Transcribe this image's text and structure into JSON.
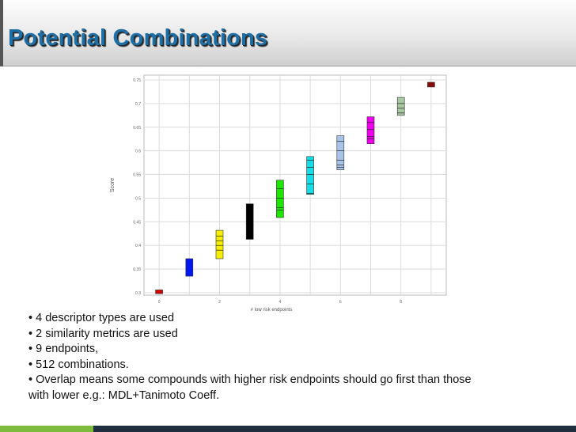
{
  "slide": {
    "title": "Potential Combinations",
    "bullets": [
      "• 4 descriptor types are used",
      "• 2 similarity metrics are used",
      "• 9 endpoints,",
      "• 512 combinations.",
      "• Overlap means some compounds with higher risk endpoints should go first than those",
      "with lower e.g.: MDL+Tanimoto Coeff."
    ]
  },
  "chart_data": {
    "type": "box",
    "xlabel": "# low risk endpoints",
    "ylabel": "Score",
    "xlim": [
      -0.5,
      9.5
    ],
    "ylim": [
      0.295,
      0.76
    ],
    "xticks": [
      0,
      2,
      4,
      6,
      8
    ],
    "yticks": [
      0.3,
      0.35,
      0.4,
      0.45,
      0.5,
      0.55,
      0.6,
      0.65,
      0.7,
      0.75
    ],
    "ytick_labels": [
      "0.3",
      "0.35",
      "0.4",
      "0.45",
      "0.5",
      "0.55",
      "0.6",
      "0.65",
      "0.7",
      "0.75"
    ],
    "grid": true,
    "boxes": [
      {
        "x": 0,
        "low": 0.298,
        "high": 0.306,
        "color": "#d40000",
        "lines": []
      },
      {
        "x": 1,
        "low": 0.335,
        "high": 0.372,
        "color": "#0018f0",
        "lines": []
      },
      {
        "x": 2,
        "low": 0.372,
        "high": 0.432,
        "color": "#f6ef00",
        "lines": [
          0.39,
          0.4,
          0.41,
          0.42
        ]
      },
      {
        "x": 3,
        "low": 0.413,
        "high": 0.488,
        "color": "#000000",
        "lines": []
      },
      {
        "x": 4,
        "low": 0.459,
        "high": 0.538,
        "color": "#1ee600",
        "lines": [
          0.475,
          0.48,
          0.5,
          0.52
        ]
      },
      {
        "x": 5,
        "low": 0.508,
        "high": 0.588,
        "color": "#19dde6",
        "lines": [
          0.51,
          0.53,
          0.55,
          0.565,
          0.58
        ]
      },
      {
        "x": 6,
        "low": 0.56,
        "high": 0.632,
        "color": "#a9c4ea",
        "lines": [
          0.565,
          0.57,
          0.58,
          0.6,
          0.62
        ]
      },
      {
        "x": 7,
        "low": 0.615,
        "high": 0.672,
        "color": "#ee00ee",
        "lines": [
          0.625,
          0.63,
          0.645,
          0.66
        ]
      },
      {
        "x": 8,
        "low": 0.675,
        "high": 0.713,
        "color": "#a8c8a0",
        "lines": [
          0.68,
          0.69,
          0.7
        ]
      },
      {
        "x": 9,
        "low": 0.735,
        "high": 0.745,
        "color": "#8a0a0a",
        "lines": []
      }
    ]
  }
}
